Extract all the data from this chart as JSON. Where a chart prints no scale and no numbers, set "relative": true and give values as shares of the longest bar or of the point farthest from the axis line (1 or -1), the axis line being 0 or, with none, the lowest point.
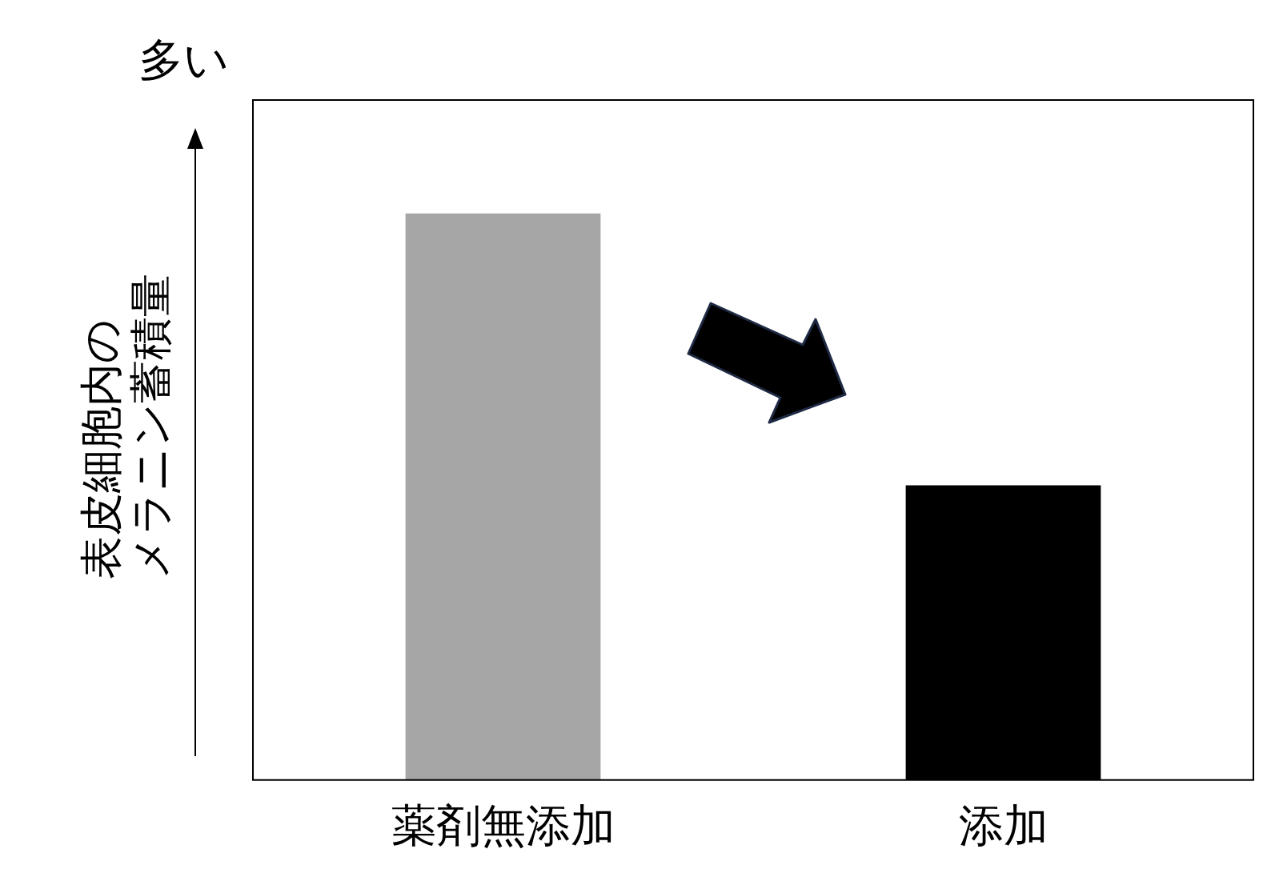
{
  "chart_data": {
    "type": "bar",
    "relative": true,
    "ylabel": "表皮細胞内のメラニン蓄積量",
    "annotations": [
      "多い"
    ],
    "categories": [
      "薬剤無添加",
      "添加"
    ],
    "values": [
      1,
      0.52
    ],
    "colors": [
      "#a6a6a6",
      "#000000"
    ],
    "legend": false,
    "grid": false
  }
}
